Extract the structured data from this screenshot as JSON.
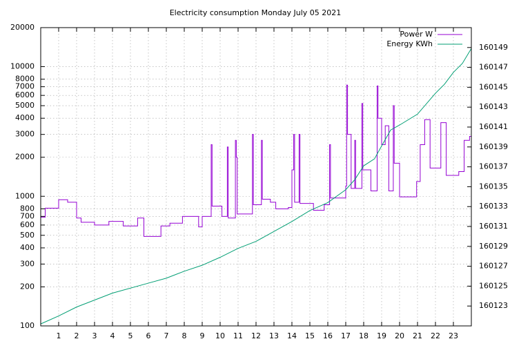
{
  "chart_data": {
    "type": "line",
    "title": "Electricity consumption Monday July 05 2021",
    "xlim": [
      0,
      24
    ],
    "xticks": [
      1,
      2,
      3,
      4,
      5,
      6,
      7,
      8,
      9,
      10,
      11,
      12,
      13,
      14,
      15,
      16,
      17,
      18,
      19,
      20,
      21,
      22,
      23
    ],
    "ylim": [
      100,
      20000
    ],
    "ylog": true,
    "yticks": [
      100,
      200,
      300,
      400,
      500,
      600,
      700,
      800,
      1000,
      2000,
      3000,
      4000,
      5000,
      6000,
      7000,
      8000,
      10000,
      20000
    ],
    "y2lim": [
      160121,
      160151
    ],
    "y2ticks": [
      160123,
      160125,
      160127,
      160129,
      160131,
      160133,
      160135,
      160137,
      160139,
      160141,
      160143,
      160145,
      160147,
      160149
    ],
    "grid": true,
    "legend": "top-right",
    "series": [
      {
        "name": "Power W",
        "color": "#9400d3",
        "x": [
          0,
          0.25,
          0.25,
          1,
          1,
          1.5,
          1.5,
          2,
          2,
          2.25,
          2.25,
          3,
          3,
          3.8,
          3.8,
          4.6,
          4.6,
          5.4,
          5.4,
          5.75,
          5.75,
          6.7,
          6.7,
          7.2,
          7.2,
          7.9,
          7.9,
          8.8,
          8.8,
          9,
          9,
          9.5,
          9.5,
          9.55,
          9.55,
          10.1,
          10.1,
          10.4,
          10.4,
          10.45,
          10.45,
          10.85,
          10.85,
          10.9,
          10.9,
          10.95,
          10.95,
          11.8,
          11.8,
          11.85,
          11.85,
          12.3,
          12.3,
          12.35,
          12.35,
          12.8,
          12.8,
          13.1,
          13.1,
          13.8,
          13.8,
          14,
          14,
          14.1,
          14.1,
          14.15,
          14.15,
          14.4,
          14.4,
          14.45,
          14.45,
          15.2,
          15.2,
          15.8,
          15.8,
          16.1,
          16.1,
          16.15,
          16.15,
          17,
          17,
          17.05,
          17.05,
          17.1,
          17.1,
          17.3,
          17.3,
          17.5,
          17.5,
          17.55,
          17.55,
          17.9,
          17.9,
          17.95,
          17.95,
          18.4,
          18.4,
          18.75,
          18.75,
          18.8,
          18.8,
          19,
          19,
          19.2,
          19.2,
          19.4,
          19.4,
          19.65,
          19.65,
          19.7,
          19.7,
          20,
          20,
          20.95,
          20.95,
          21.15,
          21.15,
          21.4,
          21.4,
          21.7,
          21.7,
          22.3,
          22.3,
          22.6,
          22.6,
          23.3,
          23.3,
          23.6,
          23.6,
          23.9,
          23.9,
          24
        ],
        "values": [
          690,
          690,
          810,
          810,
          940,
          940,
          900,
          900,
          680,
          680,
          630,
          630,
          600,
          600,
          640,
          640,
          590,
          590,
          680,
          680,
          490,
          490,
          590,
          590,
          620,
          620,
          700,
          700,
          580,
          580,
          700,
          700,
          2500,
          2500,
          840,
          840,
          700,
          700,
          2400,
          2400,
          680,
          680,
          2700,
          2700,
          2000,
          2000,
          730,
          730,
          3000,
          3000,
          860,
          860,
          2700,
          2700,
          950,
          950,
          900,
          900,
          800,
          800,
          820,
          820,
          1600,
          1600,
          3000,
          3000,
          900,
          900,
          3000,
          3000,
          880,
          880,
          780,
          780,
          860,
          860,
          2500,
          2500,
          970,
          970,
          1200,
          1200,
          7200,
          7200,
          3000,
          3000,
          1150,
          1150,
          2700,
          2700,
          1150,
          1150,
          5200,
          5200,
          1600,
          1600,
          1100,
          1100,
          7100,
          7100,
          4000,
          4000,
          2500,
          2500,
          3500,
          3500,
          1100,
          1100,
          5000,
          5000,
          1800,
          1800,
          990,
          990,
          1300,
          1300,
          2500,
          2500,
          3900,
          3900,
          1650,
          1650,
          3700,
          3700,
          1450,
          1450,
          1550,
          1550,
          2700,
          2700,
          2900,
          2900
        ]
      },
      {
        "name": "Energy KWh",
        "color": "#009e73",
        "axis": "y2",
        "x": [
          0,
          1,
          2,
          4,
          6,
          7,
          8,
          9,
          10,
          11,
          12,
          13,
          14,
          15,
          16,
          17,
          17.5,
          18,
          18.6,
          19,
          19.5,
          20,
          21,
          22,
          22.5,
          23,
          23.5,
          24
        ],
        "values": [
          160121.2,
          160122,
          160122.9,
          160124.3,
          160125.3,
          160125.8,
          160126.5,
          160127.1,
          160127.9,
          160128.8,
          160129.5,
          160130.5,
          160131.5,
          160132.6,
          160133.4,
          160134.7,
          160135.7,
          160137.1,
          160137.8,
          160139.1,
          160140.7,
          160141.2,
          160142.3,
          160144.4,
          160145.3,
          160146.5,
          160147.4,
          160148.9
        ]
      }
    ]
  }
}
